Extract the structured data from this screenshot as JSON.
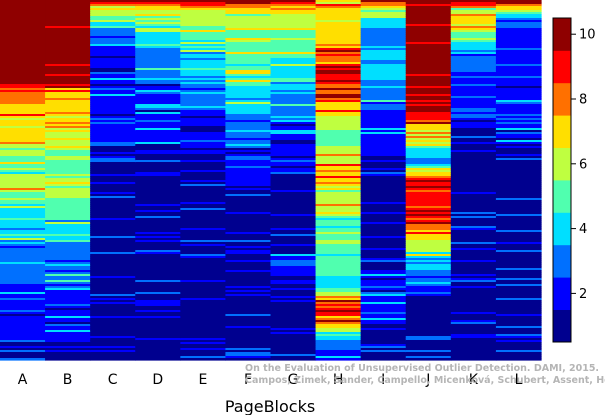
{
  "chart_data": {
    "type": "heatmap",
    "title": "",
    "xlabel": "PageBlocks",
    "ylabel": "",
    "columns": [
      "A",
      "B",
      "C",
      "D",
      "E",
      "F",
      "G",
      "H",
      "I",
      "J",
      "K",
      "L"
    ],
    "color_range": [
      0.5,
      10.5
    ],
    "colorbar_ticks": [
      2,
      4,
      6,
      8,
      10
    ],
    "colormap": [
      "#00008f",
      "#0000ff",
      "#0070ff",
      "#00dfff",
      "#50ffaf",
      "#bfff40",
      "#ffdf00",
      "#ff7000",
      "#ff0000",
      "#8f0000"
    ],
    "profiles": [
      [
        [
          0,
          10
        ],
        [
          0.22,
          10
        ],
        [
          0.25,
          8
        ],
        [
          0.32,
          7
        ],
        [
          0.38,
          7
        ],
        [
          0.45,
          5
        ],
        [
          0.52,
          6
        ],
        [
          0.58,
          4
        ],
        [
          0.64,
          4
        ],
        [
          0.7,
          3
        ],
        [
          0.76,
          3
        ],
        [
          0.82,
          2
        ],
        [
          0.9,
          2
        ],
        [
          1,
          1
        ]
      ],
      [
        [
          0,
          10
        ],
        [
          0.22,
          10
        ],
        [
          0.25,
          7
        ],
        [
          0.32,
          7
        ],
        [
          0.38,
          6
        ],
        [
          0.45,
          5
        ],
        [
          0.52,
          6
        ],
        [
          0.58,
          5
        ],
        [
          0.64,
          4
        ],
        [
          0.7,
          3
        ],
        [
          0.76,
          3
        ],
        [
          0.82,
          2
        ],
        [
          0.9,
          2
        ],
        [
          1,
          1
        ]
      ],
      [
        [
          0,
          10
        ],
        [
          0.02,
          7
        ],
        [
          0.05,
          5
        ],
        [
          0.09,
          3
        ],
        [
          0.16,
          2
        ],
        [
          0.3,
          2
        ],
        [
          0.5,
          1
        ],
        [
          0.7,
          1
        ],
        [
          1,
          1
        ]
      ],
      [
        [
          0,
          10
        ],
        [
          0.02,
          6
        ],
        [
          0.06,
          5
        ],
        [
          0.1,
          4
        ],
        [
          0.16,
          3
        ],
        [
          0.3,
          2
        ],
        [
          0.5,
          1
        ],
        [
          0.7,
          1
        ],
        [
          1,
          1
        ]
      ],
      [
        [
          0,
          10
        ],
        [
          0.03,
          6
        ],
        [
          0.1,
          5
        ],
        [
          0.18,
          4
        ],
        [
          0.26,
          3
        ],
        [
          0.36,
          2
        ],
        [
          0.5,
          1
        ],
        [
          1,
          1
        ]
      ],
      [
        [
          0,
          9
        ],
        [
          0.02,
          7
        ],
        [
          0.05,
          6
        ],
        [
          0.1,
          5
        ],
        [
          0.2,
          5
        ],
        [
          0.27,
          4
        ],
        [
          0.36,
          3
        ],
        [
          0.46,
          2
        ],
        [
          0.58,
          1
        ],
        [
          1,
          1
        ]
      ],
      [
        [
          0,
          10
        ],
        [
          0.02,
          7
        ],
        [
          0.05,
          6
        ],
        [
          0.12,
          5
        ],
        [
          0.2,
          4
        ],
        [
          0.28,
          3
        ],
        [
          0.4,
          2
        ],
        [
          0.55,
          1
        ],
        [
          0.7,
          1
        ],
        [
          0.73,
          3
        ],
        [
          0.78,
          1
        ],
        [
          1,
          1
        ]
      ],
      [
        [
          0,
          7
        ],
        [
          0.1,
          7
        ],
        [
          0.2,
          9
        ],
        [
          0.3,
          7
        ],
        [
          0.38,
          5
        ],
        [
          0.48,
          7
        ],
        [
          0.56,
          6
        ],
        [
          0.64,
          5
        ],
        [
          0.72,
          5
        ],
        [
          0.8,
          4
        ],
        [
          0.85,
          9
        ],
        [
          0.9,
          8
        ],
        [
          0.95,
          3
        ],
        [
          1,
          2
        ]
      ],
      [
        [
          0,
          10
        ],
        [
          0.02,
          6
        ],
        [
          0.05,
          4
        ],
        [
          0.1,
          3
        ],
        [
          0.18,
          4
        ],
        [
          0.26,
          3
        ],
        [
          0.36,
          2
        ],
        [
          0.5,
          1
        ],
        [
          0.7,
          1
        ],
        [
          0.8,
          2
        ],
        [
          1,
          1
        ]
      ],
      [
        [
          0,
          10
        ],
        [
          0.3,
          10
        ],
        [
          0.35,
          7
        ],
        [
          0.45,
          3
        ],
        [
          0.5,
          9
        ],
        [
          0.6,
          9
        ],
        [
          0.66,
          7
        ],
        [
          0.72,
          4
        ],
        [
          0.78,
          3
        ],
        [
          0.84,
          1
        ],
        [
          1,
          1
        ]
      ],
      [
        [
          0,
          10
        ],
        [
          0.02,
          6
        ],
        [
          0.05,
          7
        ],
        [
          0.1,
          5
        ],
        [
          0.15,
          3
        ],
        [
          0.25,
          2
        ],
        [
          0.45,
          1
        ],
        [
          1,
          1
        ]
      ],
      [
        [
          0,
          10
        ],
        [
          0.02,
          7
        ],
        [
          0.05,
          3
        ],
        [
          0.1,
          2
        ],
        [
          0.3,
          2
        ],
        [
          0.5,
          1
        ],
        [
          1,
          1
        ]
      ]
    ],
    "colorbar_label": "",
    "grid": false,
    "legend": "colorbar-right"
  },
  "attribution": {
    "line1": "On the Evaluation of Unsupervised Outlier Detection. DAMI, 2015.",
    "line2": "Campos, Zimek, Sander, Campello, Micenková, Schubert, Assent, Houle"
  }
}
